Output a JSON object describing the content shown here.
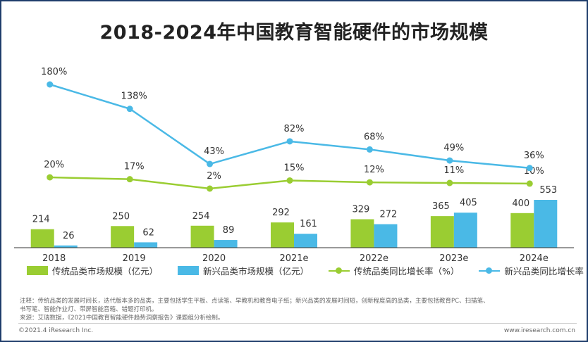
{
  "colors": {
    "traditional": "#9acd32",
    "emerging": "#4ab9e6",
    "traditional_line": "#9acd32",
    "emerging_line": "#4ab9e6",
    "axis": "#333333",
    "label": "#333333"
  },
  "chart_data": {
    "type": "bar",
    "title": "2018-2024年中国教育智能硬件的市场规模",
    "categories": [
      "2018",
      "2019",
      "2020",
      "2021e",
      "2022e",
      "2023e",
      "2024e"
    ],
    "series": [
      {
        "name": "传统品类市场规模（亿元）",
        "kind": "bar",
        "values": [
          214,
          250,
          254,
          292,
          329,
          365,
          400
        ]
      },
      {
        "name": "新兴品类市场规模（亿元）",
        "kind": "bar",
        "values": [
          26,
          62,
          89,
          161,
          272,
          405,
          553
        ]
      },
      {
        "name": "传统品类同比增长率（%）",
        "kind": "line",
        "values": [
          20,
          17,
          2,
          15,
          12,
          11,
          10
        ]
      },
      {
        "name": "新兴品类同比增长率（%）",
        "kind": "line",
        "values": [
          180,
          138,
          43,
          82,
          68,
          49,
          36
        ]
      }
    ],
    "bar_labels": {
      "traditional": [
        "214",
        "250",
        "254",
        "292",
        "329",
        "365",
        "400"
      ],
      "emerging": [
        "26",
        "62",
        "89",
        "161",
        "272",
        "405",
        "553"
      ]
    },
    "line_labels": {
      "traditional": [
        "20%",
        "17%",
        "2%",
        "15%",
        "12%",
        "11%",
        "10%"
      ],
      "emerging": [
        "180%",
        "138%",
        "43%",
        "82%",
        "68%",
        "49%",
        "36%"
      ]
    },
    "xlabel": "",
    "ylabel": "",
    "legend_position": "bottom"
  },
  "legend": {
    "traditional_bar": "传统品类市场规模（亿元）",
    "emerging_bar": "新兴品类市场规模（亿元）",
    "traditional_line": "传统品类同比增长率（%）",
    "emerging_line": "新兴品类同比增长率（%）"
  },
  "notes": {
    "line1": "注释：传统品类的发展时间长，迭代版本多的品类，主要包括学生平板、点读笔、早教机和教育电子纸；新兴品类的发展时间短，创新程度高的品类，主要包括教育PC、扫描笔、",
    "line2": "书写笔、智能作业灯、带屏智能音箱、错题打印机。",
    "line3": "来源：艾瑞数据，《2021中国教育智能硬件趋势洞察报告》课题组分析绘制。"
  },
  "footer": {
    "copyright": "©2021.4 iResearch Inc.",
    "website": "www.iresearch.com.cn"
  }
}
